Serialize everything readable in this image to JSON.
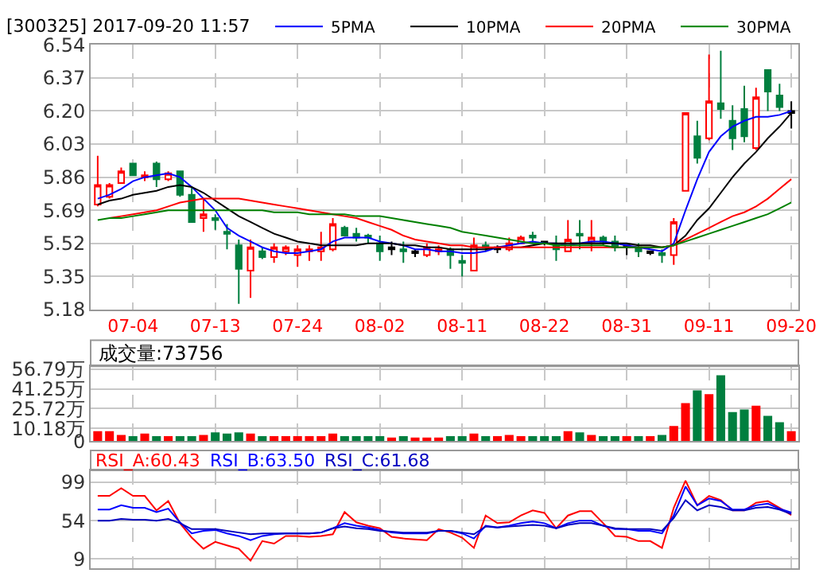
{
  "chart_data": [
    {
      "type": "candlestick",
      "title": "[300325] 2017-09-20 11:57",
      "categories": [
        null,
        null,
        null,
        "07-04",
        null,
        null,
        null,
        null,
        null,
        null,
        "07-13",
        null,
        null,
        null,
        null,
        null,
        null,
        "07-24",
        null,
        null,
        null,
        null,
        null,
        null,
        "08-02",
        null,
        null,
        null,
        null,
        null,
        null,
        "08-11",
        null,
        null,
        null,
        null,
        null,
        null,
        "08-22",
        null,
        null,
        null,
        null,
        null,
        null,
        "08-31",
        null,
        null,
        null,
        null,
        null,
        null,
        "09-11",
        null,
        null,
        null,
        null,
        null,
        null,
        "09-20"
      ],
      "ohlc": [
        [
          5.72,
          5.97,
          5.71,
          5.82
        ],
        [
          5.76,
          5.83,
          5.75,
          5.82
        ],
        [
          5.83,
          5.91,
          5.83,
          5.89
        ],
        [
          5.93,
          5.93,
          5.87,
          5.87
        ],
        [
          5.86,
          5.89,
          5.84,
          5.87
        ],
        [
          5.93,
          5.94,
          5.81,
          5.85
        ],
        [
          5.85,
          5.89,
          5.84,
          5.88
        ],
        [
          5.89,
          5.89,
          5.76,
          5.77
        ],
        [
          5.77,
          5.81,
          5.63,
          5.63
        ],
        [
          5.65,
          5.75,
          5.58,
          5.67
        ],
        [
          5.65,
          5.67,
          5.59,
          5.64
        ],
        [
          5.58,
          5.62,
          5.49,
          5.57
        ],
        [
          5.51,
          5.54,
          5.21,
          5.39
        ],
        [
          5.38,
          5.54,
          5.24,
          5.5
        ],
        [
          5.48,
          5.5,
          5.44,
          5.45
        ],
        [
          5.45,
          5.52,
          5.42,
          5.5
        ],
        [
          5.48,
          5.51,
          5.46,
          5.5
        ],
        [
          5.46,
          5.51,
          5.4,
          5.49
        ],
        [
          5.48,
          5.51,
          5.43,
          5.49
        ],
        [
          5.48,
          5.58,
          5.43,
          5.5
        ],
        [
          5.49,
          5.65,
          5.48,
          5.62
        ],
        [
          5.6,
          5.61,
          5.56,
          5.56
        ],
        [
          5.57,
          5.6,
          5.53,
          5.55
        ],
        [
          5.56,
          5.57,
          5.52,
          5.55
        ],
        [
          5.52,
          5.56,
          5.43,
          5.48
        ],
        [
          5.49,
          5.53,
          5.46,
          5.5
        ],
        [
          5.49,
          5.53,
          5.42,
          5.48
        ],
        [
          5.47,
          5.49,
          5.45,
          5.48
        ],
        [
          5.46,
          5.52,
          5.45,
          5.5
        ],
        [
          5.48,
          5.51,
          5.46,
          5.49
        ],
        [
          5.49,
          5.5,
          5.39,
          5.46
        ],
        [
          5.43,
          5.46,
          5.35,
          5.42
        ],
        [
          5.38,
          5.55,
          5.38,
          5.51
        ],
        [
          5.51,
          5.53,
          5.48,
          5.5
        ],
        [
          5.49,
          5.51,
          5.47,
          5.5
        ],
        [
          5.49,
          5.55,
          5.48,
          5.52
        ],
        [
          5.52,
          5.56,
          5.52,
          5.55
        ],
        [
          5.56,
          5.58,
          5.52,
          5.55
        ],
        [
          5.52,
          5.53,
          5.51,
          5.53
        ],
        [
          5.51,
          5.56,
          5.43,
          5.49
        ],
        [
          5.48,
          5.64,
          5.48,
          5.54
        ],
        [
          5.57,
          5.64,
          5.49,
          5.56
        ],
        [
          5.53,
          5.64,
          5.48,
          5.55
        ],
        [
          5.55,
          5.56,
          5.51,
          5.53
        ],
        [
          5.53,
          5.56,
          5.48,
          5.5
        ],
        [
          5.5,
          5.51,
          5.46,
          5.51
        ],
        [
          5.5,
          5.52,
          5.45,
          5.48
        ],
        [
          5.47,
          5.48,
          5.46,
          5.48
        ],
        [
          5.47,
          5.49,
          5.42,
          5.46
        ],
        [
          5.46,
          5.65,
          5.41,
          5.63
        ],
        [
          5.79,
          6.19,
          5.79,
          6.19
        ],
        [
          6.07,
          6.15,
          5.93,
          5.96
        ],
        [
          6.06,
          6.49,
          6.05,
          6.25
        ],
        [
          6.24,
          6.51,
          6.16,
          6.21
        ],
        [
          6.15,
          6.23,
          6.0,
          6.06
        ],
        [
          6.21,
          6.33,
          6.04,
          6.07
        ],
        [
          6.01,
          6.32,
          6.0,
          6.27
        ],
        [
          6.41,
          6.41,
          6.2,
          6.3
        ],
        [
          6.28,
          6.34,
          6.2,
          6.22
        ],
        [
          6.19,
          6.25,
          6.11,
          6.2
        ]
      ],
      "colors": [
        "#ff0000",
        "#ff0000",
        "#ff0000",
        "#007f3f",
        "#ff0000",
        "#007f3f",
        "#ff0000",
        "#007f3f",
        "#007f3f",
        "#ff0000",
        "#007f3f",
        "#007f3f",
        "#007f3f",
        "#ff0000",
        "#007f3f",
        "#ff0000",
        "#ff0000",
        "#ff0000",
        "#ff0000",
        "#ff0000",
        "#ff0000",
        "#007f3f",
        "#007f3f",
        "#007f3f",
        "#007f3f",
        "#000000",
        "#007f3f",
        "#000000",
        "#ff0000",
        "#ff0000",
        "#007f3f",
        "#007f3f",
        "#ff0000",
        "#007f3f",
        "#000000",
        "#ff0000",
        "#ff0000",
        "#007f3f",
        "#000000",
        "#007f3f",
        "#ff0000",
        "#007f3f",
        "#ff0000",
        "#007f3f",
        "#007f3f",
        "#000000",
        "#007f3f",
        "#000000",
        "#007f3f",
        "#ff0000",
        "#ff0000",
        "#007f3f",
        "#ff0000",
        "#007f3f",
        "#007f3f",
        "#007f3f",
        "#ff0000",
        "#007f3f",
        "#007f3f",
        "#000000"
      ],
      "series": [
        {
          "type": "line",
          "name": "5PMA",
          "color": "#0000ff",
          "values": [
            5.75,
            5.77,
            5.8,
            5.84,
            5.86,
            5.87,
            5.88,
            5.86,
            5.81,
            5.75,
            5.69,
            5.6,
            5.56,
            5.53,
            5.5,
            5.48,
            5.47,
            5.47,
            5.48,
            5.49,
            5.53,
            5.55,
            5.55,
            5.55,
            5.53,
            5.52,
            5.51,
            5.49,
            5.49,
            5.48,
            5.48,
            5.47,
            5.47,
            5.48,
            5.5,
            5.51,
            5.52,
            5.53,
            5.52,
            5.52,
            5.51,
            5.52,
            5.53,
            5.53,
            5.52,
            5.51,
            5.5,
            5.49,
            5.48,
            5.52,
            5.69,
            5.85,
            5.99,
            6.07,
            6.12,
            6.15,
            6.17,
            6.17,
            6.18,
            6.2
          ]
        },
        {
          "type": "line",
          "name": "10PMA",
          "color": "#000000",
          "values": [
            5.72,
            5.74,
            5.75,
            5.77,
            5.78,
            5.79,
            5.81,
            5.82,
            5.81,
            5.78,
            5.74,
            5.7,
            5.66,
            5.63,
            5.6,
            5.57,
            5.55,
            5.53,
            5.52,
            5.51,
            5.51,
            5.51,
            5.51,
            5.52,
            5.52,
            5.52,
            5.51,
            5.51,
            5.5,
            5.5,
            5.49,
            5.49,
            5.49,
            5.49,
            5.5,
            5.5,
            5.5,
            5.51,
            5.52,
            5.52,
            5.52,
            5.52,
            5.52,
            5.52,
            5.52,
            5.52,
            5.51,
            5.51,
            5.5,
            5.51,
            5.56,
            5.64,
            5.7,
            5.78,
            5.86,
            5.93,
            5.99,
            6.06,
            6.12,
            6.19
          ]
        },
        {
          "type": "line",
          "name": "20PMA",
          "color": "#ff0000",
          "values": [
            null,
            5.65,
            5.66,
            5.67,
            5.68,
            5.69,
            5.71,
            5.73,
            5.74,
            5.75,
            5.75,
            5.75,
            5.75,
            5.74,
            5.73,
            5.72,
            5.71,
            5.7,
            5.69,
            5.68,
            5.67,
            5.66,
            5.65,
            5.63,
            5.61,
            5.59,
            5.56,
            5.54,
            5.53,
            5.52,
            5.51,
            5.51,
            5.5,
            5.5,
            5.5,
            5.5,
            5.5,
            5.5,
            5.5,
            5.5,
            5.5,
            5.5,
            5.5,
            5.5,
            5.5,
            5.5,
            5.5,
            5.5,
            5.5,
            5.51,
            5.54,
            5.57,
            5.6,
            5.63,
            5.66,
            5.68,
            5.71,
            5.75,
            5.8,
            5.85
          ]
        },
        {
          "type": "line",
          "name": "30PMA",
          "color": "#008000",
          "values": [
            5.64,
            5.65,
            5.65,
            5.66,
            5.67,
            5.68,
            5.69,
            5.69,
            5.69,
            5.69,
            5.69,
            5.69,
            5.69,
            5.69,
            5.69,
            5.68,
            5.68,
            5.68,
            5.67,
            5.67,
            5.67,
            5.67,
            5.66,
            5.66,
            5.66,
            5.65,
            5.64,
            5.63,
            5.62,
            5.61,
            5.6,
            5.58,
            5.57,
            5.56,
            5.55,
            5.54,
            5.53,
            5.52,
            5.52,
            5.51,
            5.51,
            5.51,
            5.51,
            5.51,
            5.5,
            5.5,
            5.5,
            5.5,
            5.5,
            5.51,
            5.53,
            5.55,
            5.57,
            5.59,
            5.61,
            5.63,
            5.65,
            5.67,
            5.7,
            5.73
          ]
        }
      ],
      "ylim": [
        5.18,
        6.54
      ],
      "yticks": [
        5.18,
        5.35,
        5.52,
        5.69,
        5.86,
        6.03,
        {
          "value": 6.2,
          "label": "6.20"
        },
        6.37,
        6.54
      ],
      "grid": true,
      "legend": "top"
    },
    {
      "type": "bar",
      "title": "成交量:73756",
      "categories": [
        null,
        null,
        null,
        null,
        null,
        null,
        null,
        null,
        null,
        null,
        null,
        null,
        null,
        null,
        null,
        null,
        null,
        null,
        null,
        null,
        null,
        null,
        null,
        null,
        null,
        null,
        null,
        null,
        null,
        null,
        null,
        null,
        null,
        null,
        null,
        null,
        null,
        null,
        null,
        null,
        null,
        null,
        null,
        null,
        null,
        null,
        null,
        null,
        null,
        null,
        null,
        null,
        null,
        null,
        null,
        null,
        null,
        null,
        null,
        null
      ],
      "values": [
        8,
        8,
        5,
        4,
        6,
        4,
        4,
        4,
        4,
        5,
        7,
        6,
        7,
        6,
        4,
        4,
        4,
        4,
        4,
        4,
        6,
        4,
        4,
        4,
        4,
        3,
        4,
        3,
        3,
        3,
        4,
        4,
        6,
        4,
        4,
        5,
        4,
        4,
        4,
        4,
        8,
        7,
        5,
        4,
        4,
        4,
        4,
        4,
        5,
        12,
        30,
        40,
        37,
        52,
        23,
        25,
        28,
        20,
        15,
        8
      ],
      "colors": [
        "#ff0000",
        "#ff0000",
        "#ff0000",
        "#007f3f",
        "#ff0000",
        "#007f3f",
        "#ff0000",
        "#007f3f",
        "#007f3f",
        "#ff0000",
        "#007f3f",
        "#007f3f",
        "#007f3f",
        "#ff0000",
        "#007f3f",
        "#ff0000",
        "#ff0000",
        "#ff0000",
        "#ff0000",
        "#ff0000",
        "#ff0000",
        "#007f3f",
        "#007f3f",
        "#007f3f",
        "#007f3f",
        "#ff0000",
        "#007f3f",
        "#ff0000",
        "#ff0000",
        "#ff0000",
        "#007f3f",
        "#007f3f",
        "#ff0000",
        "#007f3f",
        "#ff0000",
        "#ff0000",
        "#ff0000",
        "#007f3f",
        "#007f3f",
        "#007f3f",
        "#ff0000",
        "#007f3f",
        "#ff0000",
        "#007f3f",
        "#007f3f",
        "#ff0000",
        "#007f3f",
        "#ff0000",
        "#007f3f",
        "#ff0000",
        "#ff0000",
        "#007f3f",
        "#ff0000",
        "#007f3f",
        "#007f3f",
        "#007f3f",
        "#ff0000",
        "#007f3f",
        "#007f3f",
        "#ff0000"
      ],
      "ylim": [
        0,
        59
      ],
      "yticks": [
        0,
        {
          "value": 10.18,
          "label": "10.18万"
        },
        {
          "value": 25.72,
          "label": "25.72万"
        },
        {
          "value": 41.25,
          "label": "41.25万"
        },
        {
          "value": 56.79,
          "label": "56.79万"
        }
      ],
      "grid": true,
      "tick_labels": "y"
    },
    {
      "type": "line",
      "categories": [
        null,
        null,
        null,
        null,
        null,
        null,
        null,
        null,
        null,
        null,
        null,
        null,
        null,
        null,
        null,
        null,
        null,
        null,
        null,
        null,
        null,
        null,
        null,
        null,
        null,
        null,
        null,
        null,
        null,
        null,
        null,
        null,
        null,
        null,
        null,
        null,
        null,
        null,
        null,
        null,
        null,
        null,
        null,
        null,
        null,
        null,
        null,
        null,
        null,
        null,
        null,
        null,
        null,
        null,
        null,
        null,
        null,
        null,
        null,
        null
      ],
      "series": [
        {
          "name": "RSI_A:60.43",
          "color": "#ff0000",
          "values": [
            83,
            83,
            92,
            83,
            83,
            66,
            77,
            51,
            34,
            21,
            29,
            25,
            21,
            7,
            30,
            27,
            36,
            36,
            35,
            36,
            38,
            64,
            52,
            48,
            45,
            35,
            33,
            32,
            31,
            44,
            40,
            34,
            22,
            60,
            51,
            52,
            60,
            66,
            63,
            45,
            60,
            65,
            65,
            51,
            36,
            35,
            30,
            30,
            22,
            69,
            101,
            72,
            83,
            78,
            66,
            66,
            75,
            77,
            69,
            60.43
          ]
        },
        {
          "name": "RSI_B:63.50",
          "color": "#0000ff",
          "values": [
            67,
            67,
            72,
            69,
            69,
            64,
            68,
            52,
            39,
            42,
            43,
            39,
            36,
            31,
            36,
            38,
            39,
            39,
            39,
            40,
            45,
            51,
            48,
            46,
            43,
            40,
            39,
            39,
            39,
            42,
            42,
            39,
            33,
            48,
            46,
            48,
            51,
            53,
            51,
            45,
            51,
            54,
            54,
            48,
            44,
            44,
            42,
            42,
            39,
            60,
            94,
            72,
            80,
            77,
            67,
            67,
            72,
            74,
            68,
            63.5
          ]
        },
        {
          "name": "RSI_C:61.68",
          "color": "#0000c0",
          "values": [
            54,
            54,
            56,
            55,
            55,
            54,
            56,
            51,
            44,
            44,
            44,
            42,
            40,
            38,
            39,
            39,
            39,
            39,
            39,
            40,
            45,
            47,
            45,
            44,
            42,
            41,
            40,
            40,
            40,
            42,
            42,
            40,
            38,
            47,
            46,
            47,
            48,
            49,
            48,
            45,
            49,
            51,
            51,
            48,
            45,
            44,
            44,
            44,
            42,
            57,
            78,
            66,
            72,
            70,
            66,
            66,
            69,
            70,
            67,
            61.68
          ]
        }
      ],
      "ylim": [
        -2,
        113
      ],
      "yticks": [
        9,
        54,
        99
      ],
      "grid": true,
      "tick_labels": "y",
      "legend": "top"
    }
  ]
}
